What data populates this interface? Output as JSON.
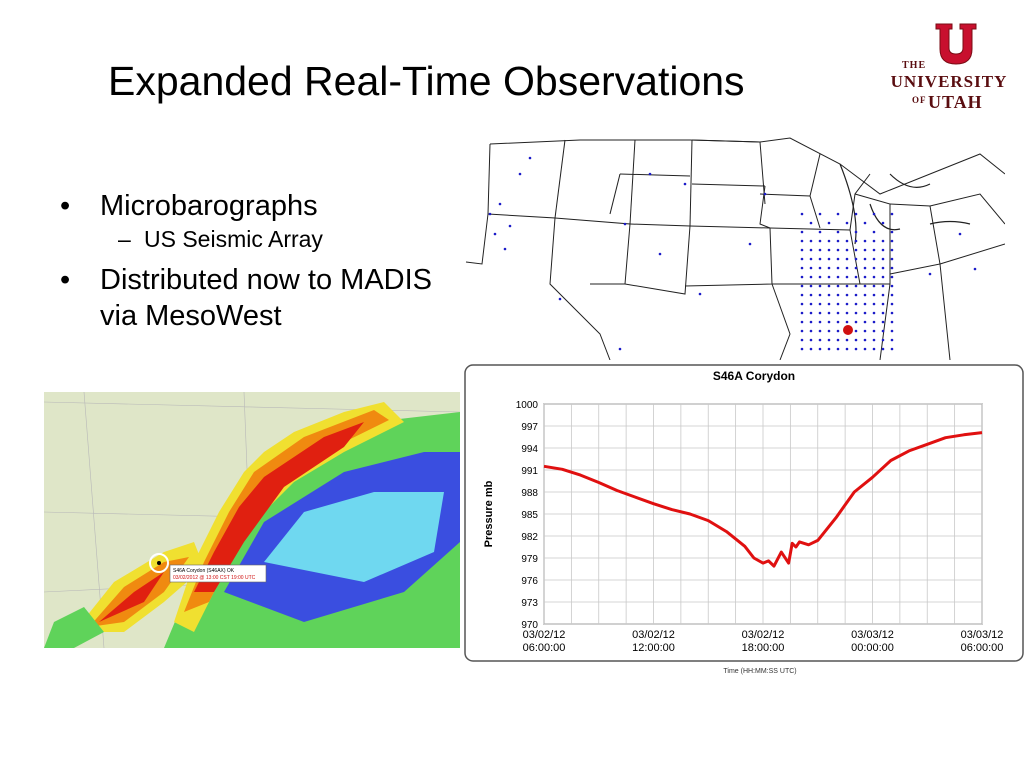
{
  "slide": {
    "title": "Expanded Real-Time Observations",
    "bullets": [
      {
        "text": "Microbarographs",
        "sub": [
          "US Seismic Array"
        ]
      },
      {
        "text": "Distributed  now to MADIS via MesoWest",
        "sub": []
      }
    ]
  },
  "logo": {
    "the": "THE",
    "university": "UNIVERSITY",
    "of": "OF",
    "utah": "UTAH",
    "color": "#5a0d10"
  },
  "radar_map": {
    "callout_line1": "S46A Corydon (S46AX)   OK",
    "callout_line2": "03/02/2012 @ 13:00 CST  19:00 UTC"
  },
  "chart_data": {
    "type": "line",
    "title": "S46A Corydon",
    "xlabel": "Time (HH:MM:SS UTC)",
    "ylabel": "Pressure  mb",
    "ylim": [
      970,
      1000
    ],
    "yticks": [
      970,
      973,
      976,
      979,
      982,
      985,
      988,
      991,
      994,
      997,
      1000
    ],
    "xticks": [
      {
        "h": 0,
        "date": "03/02/12",
        "time": "06:00:00"
      },
      {
        "h": 6,
        "date": "03/02/12",
        "time": "12:00:00"
      },
      {
        "h": 12,
        "date": "03/02/12",
        "time": "18:00:00"
      },
      {
        "h": 18,
        "date": "03/03/12",
        "time": "00:00:00"
      },
      {
        "h": 24,
        "date": "03/03/12",
        "time": "06:00:00"
      }
    ],
    "grid": true,
    "series_color": "#e01010",
    "series": [
      {
        "x": [
          0,
          1,
          2,
          3,
          4,
          5,
          6,
          7,
          8,
          9,
          10,
          11,
          11.5,
          12,
          12.3,
          12.6,
          13,
          13.4,
          13.6,
          13.8,
          14,
          14.5,
          15,
          16,
          17,
          18,
          19,
          20,
          21,
          22,
          23,
          24
        ],
        "y": [
          991.5,
          991.1,
          990.3,
          989.3,
          988.2,
          987.3,
          986.4,
          985.6,
          985.0,
          984.1,
          982.6,
          980.6,
          979.0,
          978.3,
          978.6,
          977.9,
          979.8,
          978.3,
          981.0,
          980.5,
          981.2,
          980.8,
          981.4,
          984.5,
          988.0,
          990.0,
          992.3,
          993.6,
          994.5,
          995.4,
          995.8,
          996.1
        ]
      }
    ]
  }
}
